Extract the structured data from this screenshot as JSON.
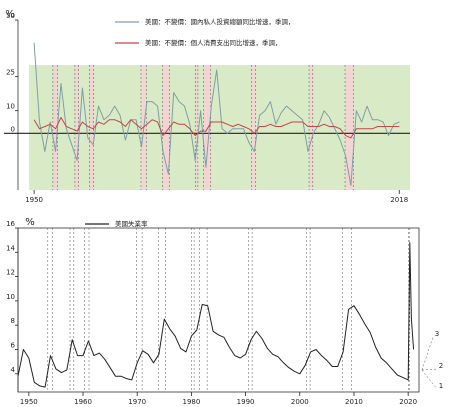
{
  "chart_data": [
    {
      "type": "line",
      "y_label": "%",
      "x": [
        1950,
        1951,
        1952,
        1953,
        1954,
        1955,
        1956,
        1957,
        1958,
        1959,
        1960,
        1961,
        1962,
        1963,
        1964,
        1965,
        1966,
        1967,
        1968,
        1969,
        1970,
        1971,
        1972,
        1973,
        1974,
        1975,
        1976,
        1977,
        1978,
        1979,
        1980,
        1981,
        1982,
        1983,
        1984,
        1985,
        1986,
        1987,
        1988,
        1989,
        1990,
        1991,
        1992,
        1993,
        1994,
        1995,
        1996,
        1997,
        1998,
        1999,
        2000,
        2001,
        2002,
        2003,
        2004,
        2005,
        2006,
        2007,
        2008,
        2009,
        2010,
        2011,
        2012,
        2013,
        2014,
        2015,
        2016,
        2017,
        2018
      ],
      "series": [
        {
          "name": "美國：不變價：國內私人投資總額同比增速，季調，",
          "color": "#7f9ea8",
          "values": [
            40,
            5,
            -8,
            5,
            -8,
            22,
            2,
            -5,
            -12,
            20,
            -2,
            -5,
            12,
            6,
            8,
            12,
            8,
            -3,
            6,
            6,
            -6,
            14,
            14,
            12,
            -8,
            -18,
            18,
            14,
            12,
            4,
            -12,
            10,
            -15,
            12,
            28,
            2,
            0,
            2,
            2,
            2,
            -4,
            -8,
            8,
            10,
            14,
            4,
            9,
            12,
            10,
            8,
            6,
            -8,
            0,
            4,
            10,
            7,
            2,
            -3,
            -10,
            -23,
            10,
            5,
            12,
            6,
            6,
            5,
            -1,
            4,
            5
          ]
        },
        {
          "name": "美國：不變價：個人消費支出同比增速，季調，",
          "color": "#c0474a",
          "values": [
            6,
            2,
            3,
            4,
            2,
            7,
            3,
            2,
            1,
            5,
            3,
            2,
            5,
            4,
            6,
            6,
            5,
            3,
            6,
            4,
            2,
            4,
            6,
            5,
            -1,
            2,
            5,
            4,
            4,
            2,
            -1,
            1,
            1,
            5,
            5,
            5,
            4,
            3,
            4,
            3,
            2,
            0,
            3,
            3,
            4,
            3,
            3,
            4,
            5,
            5,
            5,
            3,
            3,
            3,
            4,
            3,
            3,
            2,
            -1,
            -2,
            2,
            2,
            2,
            2,
            3,
            3,
            3,
            3,
            3
          ]
        }
      ],
      "recessions": [
        [
          1953.5,
          1954.4
        ],
        [
          1957.6,
          1958.3
        ],
        [
          1960.3,
          1961.1
        ],
        [
          1969.9,
          1970.9
        ],
        [
          1973.9,
          1975.2
        ],
        [
          1980.0,
          1980.5
        ],
        [
          1981.5,
          1982.9
        ],
        [
          1990.5,
          1991.2
        ],
        [
          2001.2,
          2001.9
        ],
        [
          2007.9,
          2009.5
        ]
      ],
      "xlim": [
        1947,
        2020
      ],
      "ylim": [
        -25,
        50
      ],
      "xticks": [
        1950,
        2018
      ],
      "yticks": [
        50,
        25,
        10,
        0
      ]
    },
    {
      "type": "line",
      "y_label": "%",
      "x": [
        1948,
        1949,
        1950,
        1951,
        1952,
        1953,
        1954,
        1955,
        1956,
        1957,
        1958,
        1959,
        1960,
        1961,
        1962,
        1963,
        1964,
        1965,
        1966,
        1967,
        1968,
        1969,
        1970,
        1971,
        1972,
        1973,
        1974,
        1975,
        1976,
        1977,
        1978,
        1979,
        1980,
        1981,
        1982,
        1983,
        1984,
        1985,
        1986,
        1987,
        1988,
        1989,
        1990,
        1991,
        1992,
        1993,
        1994,
        1995,
        1996,
        1997,
        1998,
        1999,
        2000,
        2001,
        2002,
        2003,
        2004,
        2005,
        2006,
        2007,
        2008,
        2009,
        2010,
        2011,
        2012,
        2013,
        2014,
        2015,
        2016,
        2017,
        2018,
        2019,
        2020,
        2020.3,
        2020.6,
        2021
      ],
      "series": [
        {
          "name": "美國失業率",
          "color": "#222222",
          "values": [
            3.8,
            6,
            5.3,
            3.3,
            3,
            2.9,
            5.5,
            4.4,
            4.1,
            4.3,
            6.8,
            5.5,
            5.5,
            6.7,
            5.5,
            5.7,
            5.2,
            4.5,
            3.8,
            3.8,
            3.6,
            3.5,
            4.9,
            5.9,
            5.6,
            4.9,
            5.6,
            8.5,
            7.7,
            7.1,
            6.1,
            5.8,
            7.1,
            7.6,
            9.7,
            9.6,
            7.5,
            7.2,
            7,
            6.2,
            5.5,
            5.3,
            5.6,
            6.8,
            7.5,
            6.9,
            6.1,
            5.6,
            5.4,
            4.9,
            4.5,
            4.2,
            4,
            4.7,
            5.8,
            6,
            5.5,
            5.1,
            4.6,
            4.6,
            5.8,
            9.3,
            9.6,
            8.9,
            8.1,
            7.4,
            6.2,
            5.3,
            4.9,
            4.4,
            3.9,
            3.7,
            3.5,
            14.8,
            8.5,
            6
          ]
        }
      ],
      "recessions": [
        [
          1953.5,
          1954.4
        ],
        [
          1957.6,
          1958.3
        ],
        [
          1960.3,
          1961.1
        ],
        [
          1969.9,
          1970.9
        ],
        [
          1973.9,
          1975.2
        ],
        [
          1980.0,
          1980.5
        ],
        [
          1981.5,
          1982.9
        ],
        [
          1990.5,
          1991.2
        ],
        [
          2001.2,
          2001.9
        ],
        [
          2007.9,
          2009.5
        ],
        [
          2020.1,
          2020.3
        ]
      ],
      "annotations": [
        "1",
        "2",
        "3"
      ],
      "xlim": [
        1948,
        2022
      ],
      "ylim": [
        2.5,
        16
      ],
      "xticks": [
        1950,
        1960,
        1970,
        1980,
        1990,
        2000,
        2010,
        2020
      ],
      "yticks": [
        4,
        6,
        8,
        10,
        12,
        14,
        16
      ]
    }
  ]
}
